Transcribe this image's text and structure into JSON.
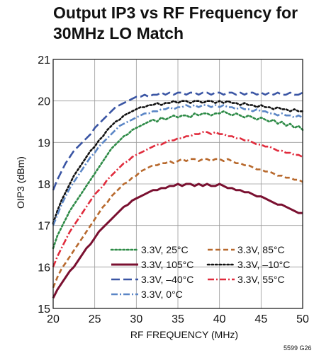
{
  "chart_data": {
    "type": "line",
    "title_lines": [
      "Output IP3 vs RF Frequency for",
      "30MHz LO Match"
    ],
    "xlabel": "RF FREQUENCY (MHz)",
    "ylabel": "OIP3 (dBm)",
    "xlim": [
      20,
      50
    ],
    "ylim": [
      15,
      21
    ],
    "xticks": [
      20,
      25,
      30,
      35,
      40,
      45,
      50
    ],
    "yticks": [
      15,
      16,
      17,
      18,
      19,
      20,
      21
    ],
    "grid": true,
    "legend_position": "bottom-center",
    "footnote": "5599 G26",
    "x": [
      20.0,
      20.5,
      21.0,
      21.5,
      22.0,
      22.5,
      23.0,
      23.5,
      24.0,
      24.5,
      25.0,
      25.5,
      26.0,
      26.5,
      27.0,
      27.5,
      28.0,
      28.5,
      29.0,
      29.5,
      30.0,
      30.5,
      31.0,
      31.5,
      32.0,
      32.5,
      33.0,
      33.5,
      34.0,
      34.5,
      35.0,
      35.5,
      36.0,
      36.5,
      37.0,
      37.5,
      38.0,
      38.5,
      39.0,
      39.5,
      40.0,
      40.5,
      41.0,
      41.5,
      42.0,
      42.5,
      43.0,
      43.5,
      44.0,
      44.5,
      45.0,
      45.5,
      46.0,
      46.5,
      47.0,
      47.5,
      48.0,
      48.5,
      49.0,
      49.5,
      50.0
    ],
    "series": [
      {
        "name": "3.3V, 25°C",
        "color": "#2e8b47",
        "dash": "dotted",
        "values": [
          16.45,
          16.75,
          16.95,
          17.15,
          17.35,
          17.5,
          17.65,
          17.8,
          17.95,
          18.1,
          18.25,
          18.4,
          18.55,
          18.7,
          18.85,
          18.95,
          19.05,
          19.15,
          19.2,
          19.3,
          19.35,
          19.4,
          19.45,
          19.5,
          19.55,
          19.5,
          19.6,
          19.55,
          19.6,
          19.65,
          19.6,
          19.65,
          19.65,
          19.6,
          19.7,
          19.65,
          19.7,
          19.7,
          19.65,
          19.7,
          19.7,
          19.75,
          19.7,
          19.65,
          19.7,
          19.65,
          19.6,
          19.65,
          19.6,
          19.55,
          19.6,
          19.55,
          19.5,
          19.55,
          19.45,
          19.5,
          19.4,
          19.45,
          19.35,
          19.4,
          19.3
        ]
      },
      {
        "name": "3.3V, 85°C",
        "color": "#b8692d",
        "dash": "dashed",
        "values": [
          15.5,
          15.75,
          15.95,
          16.1,
          16.25,
          16.4,
          16.55,
          16.7,
          16.85,
          17.0,
          17.15,
          17.3,
          17.45,
          17.55,
          17.7,
          17.8,
          17.9,
          18.0,
          18.05,
          18.15,
          18.2,
          18.3,
          18.35,
          18.4,
          18.45,
          18.45,
          18.5,
          18.5,
          18.55,
          18.5,
          18.55,
          18.6,
          18.55,
          18.6,
          18.6,
          18.55,
          18.6,
          18.6,
          18.55,
          18.6,
          18.6,
          18.55,
          18.6,
          18.55,
          18.5,
          18.5,
          18.45,
          18.45,
          18.4,
          18.35,
          18.35,
          18.3,
          18.3,
          18.25,
          18.2,
          18.2,
          18.15,
          18.15,
          18.1,
          18.1,
          18.05
        ]
      },
      {
        "name": "3.3V, 105°C",
        "color": "#7a1030",
        "dash": "solid",
        "values": [
          15.25,
          15.45,
          15.6,
          15.75,
          15.9,
          16.0,
          16.15,
          16.3,
          16.45,
          16.55,
          16.7,
          16.85,
          16.95,
          17.05,
          17.15,
          17.25,
          17.35,
          17.45,
          17.5,
          17.6,
          17.65,
          17.7,
          17.75,
          17.8,
          17.85,
          17.85,
          17.9,
          17.9,
          17.95,
          17.95,
          18.0,
          17.95,
          18.0,
          18.0,
          17.95,
          18.0,
          17.95,
          18.0,
          17.95,
          17.95,
          18.0,
          17.95,
          17.9,
          17.9,
          17.85,
          17.85,
          17.8,
          17.8,
          17.75,
          17.7,
          17.7,
          17.65,
          17.6,
          17.55,
          17.5,
          17.5,
          17.45,
          17.4,
          17.35,
          17.3,
          17.3
        ]
      },
      {
        "name": "3.3V, –10°C",
        "color": "#111111",
        "dash": "dotted",
        "values": [
          17.05,
          17.35,
          17.6,
          17.8,
          18.0,
          18.2,
          18.35,
          18.5,
          18.65,
          18.8,
          18.9,
          19.05,
          19.15,
          19.3,
          19.4,
          19.5,
          19.55,
          19.65,
          19.7,
          19.75,
          19.8,
          19.85,
          19.85,
          19.9,
          19.9,
          19.95,
          19.9,
          19.95,
          19.95,
          20.0,
          19.95,
          20.0,
          20.0,
          19.95,
          20.0,
          20.0,
          19.95,
          20.0,
          20.0,
          19.95,
          20.0,
          19.95,
          20.0,
          19.95,
          19.95,
          19.9,
          19.95,
          19.9,
          19.9,
          19.85,
          19.9,
          19.85,
          19.85,
          19.8,
          19.85,
          19.8,
          19.8,
          19.75,
          19.8,
          19.75,
          19.75
        ]
      },
      {
        "name": "3.3V, –40°C",
        "color": "#3a55a4",
        "dash": "longdash",
        "values": [
          17.85,
          18.1,
          18.3,
          18.5,
          18.65,
          18.8,
          18.9,
          19.0,
          19.1,
          19.2,
          19.35,
          19.45,
          19.55,
          19.65,
          19.75,
          19.85,
          19.9,
          19.95,
          20.0,
          20.05,
          20.1,
          20.1,
          20.15,
          20.1,
          20.15,
          20.15,
          20.2,
          20.15,
          20.2,
          20.15,
          20.2,
          20.2,
          20.15,
          20.2,
          20.2,
          20.15,
          20.2,
          20.2,
          20.15,
          20.2,
          20.2,
          20.15,
          20.2,
          20.2,
          20.15,
          20.2,
          20.15,
          20.2,
          20.2,
          20.15,
          20.2,
          20.15,
          20.2,
          20.15,
          20.2,
          20.15,
          20.15,
          20.2,
          20.15,
          20.15,
          20.2
        ]
      },
      {
        "name": "3.3V, 55°C",
        "color": "#e02b3c",
        "dash": "dashdot",
        "values": [
          16.0,
          16.25,
          16.45,
          16.65,
          16.85,
          17.0,
          17.15,
          17.3,
          17.45,
          17.6,
          17.75,
          17.85,
          17.95,
          18.1,
          18.2,
          18.3,
          18.4,
          18.5,
          18.55,
          18.65,
          18.7,
          18.75,
          18.8,
          18.85,
          18.9,
          18.95,
          18.95,
          19.0,
          19.05,
          19.05,
          19.1,
          19.1,
          19.15,
          19.15,
          19.2,
          19.2,
          19.25,
          19.25,
          19.2,
          19.25,
          19.2,
          19.2,
          19.15,
          19.15,
          19.1,
          19.1,
          19.05,
          19.05,
          19.0,
          18.95,
          18.95,
          18.9,
          18.9,
          18.85,
          18.8,
          18.8,
          18.75,
          18.75,
          18.7,
          18.7,
          18.65
        ]
      },
      {
        "name": "3.3V, 0°C",
        "color": "#5b86c6",
        "dash": "dashdot",
        "values": [
          17.0,
          17.25,
          17.5,
          17.7,
          17.9,
          18.05,
          18.2,
          18.35,
          18.5,
          18.65,
          18.75,
          18.9,
          19.0,
          19.1,
          19.2,
          19.3,
          19.4,
          19.45,
          19.5,
          19.55,
          19.6,
          19.65,
          19.7,
          19.7,
          19.75,
          19.75,
          19.8,
          19.8,
          19.85,
          19.8,
          19.85,
          19.85,
          19.9,
          19.85,
          19.9,
          19.85,
          19.9,
          19.9,
          19.85,
          19.9,
          19.85,
          19.9,
          19.85,
          19.85,
          19.8,
          19.85,
          19.8,
          19.8,
          19.75,
          19.8,
          19.75,
          19.75,
          19.7,
          19.7,
          19.65,
          19.7,
          19.65,
          19.65,
          19.6,
          19.65,
          19.6
        ]
      }
    ],
    "legend": [
      {
        "label": "3.3V, 25°C",
        "series": 0
      },
      {
        "label": "3.3V, 85°C",
        "series": 1
      },
      {
        "label": "3.3V, 105°C",
        "series": 2
      },
      {
        "label": "3.3V, –10°C",
        "series": 3
      },
      {
        "label": "3.3V, –40°C",
        "series": 4
      },
      {
        "label": "3.3V, 55°C",
        "series": 5
      },
      {
        "label": "3.3V, 0°C",
        "series": 6
      }
    ]
  }
}
